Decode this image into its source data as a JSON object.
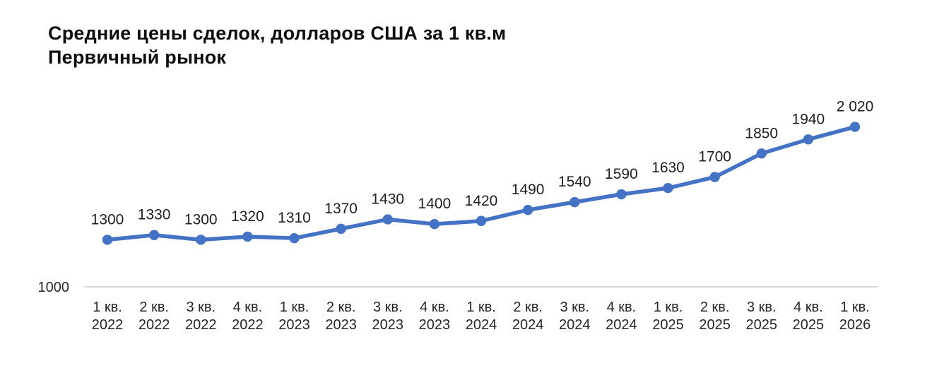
{
  "title": {
    "line1": "Средние цены сделок, долларов США за 1 кв.м",
    "line2": "Первичный рынок"
  },
  "chart_data": {
    "type": "line",
    "title": "Средние цены сделок, долларов США за 1 кв.м",
    "subtitle": "Первичный рынок",
    "categories": [
      "1 кв. 2022",
      "2 кв. 2022",
      "3 кв. 2022",
      "4 кв. 2022",
      "1 кв. 2023",
      "2 кв. 2023",
      "3 кв. 2023",
      "4 кв. 2023",
      "1 кв. 2024",
      "2 кв. 2024",
      "3 кв. 2024",
      "4 кв. 2024",
      "1 кв. 2025",
      "2 кв. 2025",
      "3 кв. 2025",
      "4 кв. 2025",
      "1 кв. 2026"
    ],
    "values": [
      1300,
      1330,
      1300,
      1320,
      1310,
      1370,
      1430,
      1400,
      1420,
      1490,
      1540,
      1590,
      1630,
      1700,
      1850,
      1940,
      2020
    ],
    "point_labels": [
      "1300",
      "1330",
      "1300",
      "1320",
      "1310",
      "1370",
      "1430",
      "1400",
      "1420",
      "1490",
      "1540",
      "1590",
      "1630",
      "1700",
      "1850",
      "1940",
      "2 020"
    ],
    "xlabel": "",
    "ylabel": "",
    "y_axis": {
      "visible_tick": "1000",
      "min": 1000
    },
    "ylim": [
      1000,
      2100
    ],
    "grid": "off",
    "legend": "none",
    "colors": {
      "line": "#4472C4",
      "marker": "#4472C4",
      "axis_line": "#D9D9D9",
      "data_label": "#1F1F1F",
      "tick_label": "#262626",
      "title": "#0F0F0F"
    }
  }
}
